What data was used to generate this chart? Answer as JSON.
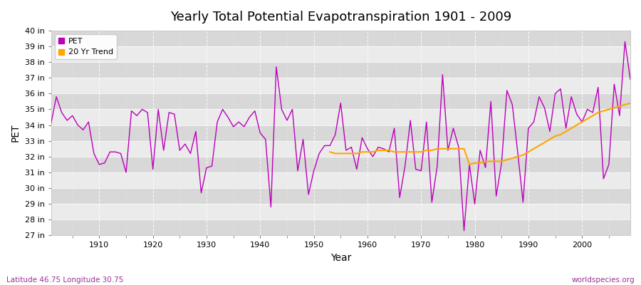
{
  "title": "Yearly Total Potential Evapotranspiration 1901 - 2009",
  "xlabel": "Year",
  "ylabel": "PET",
  "footer_left": "Latitude 46.75 Longitude 30.75",
  "footer_right": "worldspecies.org",
  "bg_color": "#ffffff",
  "plot_bg_color": "#f0f0f0",
  "band_color_light": "#ebebeb",
  "band_color_dark": "#d8d8d8",
  "pet_color": "#bb00bb",
  "trend_color": "#FFA500",
  "ylim_min": 27,
  "ylim_max": 40,
  "years": [
    1901,
    1902,
    1903,
    1904,
    1905,
    1906,
    1907,
    1908,
    1909,
    1910,
    1911,
    1912,
    1913,
    1914,
    1915,
    1916,
    1917,
    1918,
    1919,
    1920,
    1921,
    1922,
    1923,
    1924,
    1925,
    1926,
    1927,
    1928,
    1929,
    1930,
    1931,
    1932,
    1933,
    1934,
    1935,
    1936,
    1937,
    1938,
    1939,
    1940,
    1941,
    1942,
    1943,
    1944,
    1945,
    1946,
    1947,
    1948,
    1949,
    1950,
    1951,
    1952,
    1953,
    1954,
    1955,
    1956,
    1957,
    1958,
    1959,
    1960,
    1961,
    1962,
    1963,
    1964,
    1965,
    1966,
    1967,
    1968,
    1969,
    1970,
    1971,
    1972,
    1973,
    1974,
    1975,
    1976,
    1977,
    1978,
    1979,
    1980,
    1981,
    1982,
    1983,
    1984,
    1985,
    1986,
    1987,
    1988,
    1989,
    1990,
    1991,
    1992,
    1993,
    1994,
    1995,
    1996,
    1997,
    1998,
    1999,
    2000,
    2001,
    2002,
    2003,
    2004,
    2005,
    2006,
    2007,
    2008,
    2009
  ],
  "pet": [
    34.1,
    35.8,
    34.8,
    34.3,
    34.6,
    34.0,
    33.7,
    34.2,
    32.2,
    31.5,
    31.6,
    32.3,
    32.3,
    32.2,
    31.0,
    34.9,
    34.6,
    35.0,
    34.8,
    31.2,
    35.0,
    32.4,
    34.8,
    34.7,
    32.4,
    32.8,
    32.2,
    33.6,
    29.7,
    31.3,
    31.4,
    34.2,
    35.0,
    34.5,
    33.9,
    34.2,
    33.9,
    34.5,
    34.9,
    33.5,
    33.1,
    28.8,
    37.7,
    35.0,
    34.3,
    35.0,
    31.1,
    33.1,
    29.6,
    31.1,
    32.2,
    32.7,
    32.7,
    33.4,
    35.4,
    32.4,
    32.6,
    31.2,
    33.2,
    32.5,
    32.0,
    32.6,
    32.5,
    32.3,
    33.8,
    29.4,
    31.4,
    34.3,
    31.2,
    31.1,
    34.2,
    29.1,
    31.4,
    37.2,
    32.4,
    33.8,
    32.6,
    27.3,
    31.5,
    29.0,
    32.4,
    31.3,
    35.5,
    29.5,
    31.6,
    36.2,
    35.3,
    32.3,
    29.1,
    33.8,
    34.2,
    35.8,
    35.1,
    33.6,
    36.0,
    36.3,
    33.8,
    35.8,
    34.7,
    34.2,
    35.0,
    34.8,
    36.4,
    30.6,
    31.5,
    36.6,
    34.6,
    39.3,
    36.9
  ],
  "trend_years": [
    1953,
    1954,
    1955,
    1956,
    1957,
    1958,
    1959,
    1960,
    1961,
    1962,
    1963,
    1964,
    1965,
    1966,
    1967,
    1968,
    1969,
    1970,
    1971,
    1972,
    1973,
    1974,
    1975,
    1976,
    1977,
    1978,
    1979,
    1980,
    1981,
    1982,
    1983,
    1984,
    1985,
    1986,
    1987,
    1988,
    1989,
    1990,
    1991,
    1992,
    1993,
    1994,
    1995,
    1996,
    1997,
    1998,
    1999,
    2000,
    2001,
    2002,
    2003,
    2004,
    2005,
    2006,
    2007,
    2008,
    2009
  ],
  "trend_values": [
    32.3,
    32.2,
    32.2,
    32.2,
    32.2,
    32.2,
    32.3,
    32.3,
    32.3,
    32.4,
    32.4,
    32.4,
    32.3,
    32.3,
    32.3,
    32.3,
    32.3,
    32.3,
    32.4,
    32.4,
    32.5,
    32.5,
    32.5,
    32.5,
    32.5,
    32.5,
    31.5,
    31.6,
    31.6,
    31.7,
    31.7,
    31.7,
    31.7,
    31.8,
    31.9,
    32.0,
    32.1,
    32.3,
    32.5,
    32.7,
    32.9,
    33.1,
    33.3,
    33.4,
    33.6,
    33.8,
    34.0,
    34.2,
    34.4,
    34.6,
    34.8,
    34.9,
    35.0,
    35.1,
    35.2,
    35.3,
    35.4
  ]
}
